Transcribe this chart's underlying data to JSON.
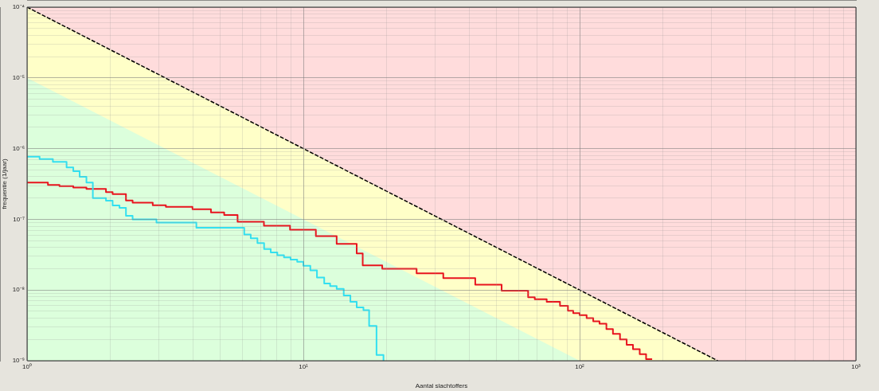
{
  "chart_data": {
    "type": "step",
    "xlabel": "Aantal slachtoffers",
    "ylabel": "frequentie (1/jaar)",
    "log": "xy",
    "grid": true,
    "xlim": [
      1,
      1000
    ],
    "ylim": [
      1e-09,
      0.0001
    ],
    "xticks": [
      {
        "value": 1,
        "label": "10⁰"
      },
      {
        "value": 2,
        "label": null
      },
      {
        "value": 3,
        "label": null
      },
      {
        "value": 4,
        "label": null
      },
      {
        "value": 5,
        "label": null
      },
      {
        "value": 6,
        "label": null
      },
      {
        "value": 7,
        "label": null
      },
      {
        "value": 8,
        "label": null
      },
      {
        "value": 9,
        "label": null
      },
      {
        "value": 10,
        "label": "10¹"
      },
      {
        "value": 20,
        "label": null
      },
      {
        "value": 30,
        "label": null
      },
      {
        "value": 40,
        "label": null
      },
      {
        "value": 50,
        "label": null
      },
      {
        "value": 60,
        "label": null
      },
      {
        "value": 70,
        "label": null
      },
      {
        "value": 80,
        "label": null
      },
      {
        "value": 90,
        "label": null
      },
      {
        "value": 100,
        "label": "10²"
      },
      {
        "value": 200,
        "label": null
      },
      {
        "value": 300,
        "label": null
      },
      {
        "value": 400,
        "label": null
      },
      {
        "value": 500,
        "label": null
      },
      {
        "value": 600,
        "label": null
      },
      {
        "value": 700,
        "label": null
      },
      {
        "value": 800,
        "label": null
      },
      {
        "value": 900,
        "label": null
      },
      {
        "value": 1000,
        "label": "10³"
      }
    ],
    "yticks": [
      {
        "value": 1e-09,
        "label": "10⁻⁹"
      },
      {
        "value": 2e-09,
        "label": null
      },
      {
        "value": 3e-09,
        "label": null
      },
      {
        "value": 4e-09,
        "label": null
      },
      {
        "value": 5e-09,
        "label": null
      },
      {
        "value": 6e-09,
        "label": null
      },
      {
        "value": 7e-09,
        "label": null
      },
      {
        "value": 8e-09,
        "label": null
      },
      {
        "value": 9e-09,
        "label": null
      },
      {
        "value": 1e-08,
        "label": "10⁻⁸"
      },
      {
        "value": 2e-08,
        "label": null
      },
      {
        "value": 3e-08,
        "label": null
      },
      {
        "value": 4e-08,
        "label": null
      },
      {
        "value": 5e-08,
        "label": null
      },
      {
        "value": 6e-08,
        "label": null
      },
      {
        "value": 7e-08,
        "label": null
      },
      {
        "value": 8e-08,
        "label": null
      },
      {
        "value": 9e-08,
        "label": null
      },
      {
        "value": 1e-07,
        "label": "10⁻⁷"
      },
      {
        "value": 2e-07,
        "label": null
      },
      {
        "value": 3e-07,
        "label": null
      },
      {
        "value": 4e-07,
        "label": null
      },
      {
        "value": 5e-07,
        "label": null
      },
      {
        "value": 6e-07,
        "label": null
      },
      {
        "value": 7e-07,
        "label": null
      },
      {
        "value": 8e-07,
        "label": null
      },
      {
        "value": 9e-07,
        "label": null
      },
      {
        "value": 1e-06,
        "label": "10⁻⁶"
      },
      {
        "value": 2e-06,
        "label": null
      },
      {
        "value": 3e-06,
        "label": null
      },
      {
        "value": 4e-06,
        "label": null
      },
      {
        "value": 5e-06,
        "label": null
      },
      {
        "value": 6e-06,
        "label": null
      },
      {
        "value": 7e-06,
        "label": null
      },
      {
        "value": 8e-06,
        "label": null
      },
      {
        "value": 9e-06,
        "label": null
      },
      {
        "value": 1e-05,
        "label": "10⁻⁵"
      },
      {
        "value": 2e-05,
        "label": null
      },
      {
        "value": 3e-05,
        "label": null
      },
      {
        "value": 4e-05,
        "label": null
      },
      {
        "value": 5e-05,
        "label": null
      },
      {
        "value": 6e-05,
        "label": null
      },
      {
        "value": 7e-05,
        "label": null
      },
      {
        "value": 8e-05,
        "label": null
      },
      {
        "value": 9e-05,
        "label": null
      },
      {
        "value": 0.0001,
        "label": "10⁻⁴"
      }
    ],
    "series": [
      {
        "color": "#33e0f0",
        "x": [
          1,
          1.11,
          1.24,
          1.39,
          1.47,
          1.55,
          1.64,
          1.73,
          1.93,
          2.04,
          2.16,
          2.28,
          2.41,
          2.94,
          4.1,
          6.11,
          6.45,
          6.82,
          7.21,
          7.62,
          8.05,
          8.51,
          8.99,
          9.5,
          10,
          10.6,
          11.2,
          11.9,
          12.5,
          13.2,
          14,
          14.8,
          15.6,
          16.5,
          17.3,
          18.4,
          19.5
        ],
        "values": [
          7.7e-07,
          7.1e-07,
          6.5e-07,
          5.4e-07,
          4.8e-07,
          4e-07,
          3.3e-07,
          2e-07,
          1.83e-07,
          1.57e-07,
          1.45e-07,
          1.12e-07,
          1e-07,
          9e-08,
          7.6e-08,
          6.1e-08,
          5.4e-08,
          4.6e-08,
          3.8e-08,
          3.4e-08,
          3.1e-08,
          2.9e-08,
          2.7e-08,
          2.5e-08,
          2.2e-08,
          1.9e-08,
          1.5e-08,
          1.24e-08,
          1.14e-08,
          1.04e-08,
          8.4e-09,
          6.8e-09,
          5.7e-09,
          5.2e-09,
          3.1e-09,
          1.21e-09,
          1e-09
        ]
      },
      {
        "color": "#e8141e",
        "x": [
          1,
          1.19,
          1.31,
          1.47,
          1.64,
          1.93,
          2.04,
          2.28,
          2.41,
          2.85,
          3.18,
          3.97,
          4.63,
          5.17,
          5.78,
          7.2,
          8.95,
          11.1,
          13.2,
          15.6,
          16.4,
          19.3,
          25.7,
          32.1,
          41.9,
          52.2,
          65.1,
          68.8,
          76,
          84.9,
          90.7,
          94.8,
          100,
          106,
          112,
          118,
          125,
          132,
          140,
          148,
          156,
          165,
          174,
          183
        ],
        "values": [
          3.3e-07,
          3.07e-07,
          2.94e-07,
          2.81e-07,
          2.69e-07,
          2.43e-07,
          2.27e-07,
          1.85e-07,
          1.72e-07,
          1.58e-07,
          1.5e-07,
          1.39e-07,
          1.25e-07,
          1.15e-07,
          9.2e-08,
          8.1e-08,
          7.1e-08,
          5.8e-08,
          4.5e-08,
          3.3e-08,
          2.23e-08,
          2e-08,
          1.72e-08,
          1.47e-08,
          1.19e-08,
          9.8e-09,
          7.9e-09,
          7.4e-09,
          6.8e-09,
          6e-09,
          5.1e-09,
          4.7e-09,
          4.4e-09,
          4e-09,
          3.6e-09,
          3.35e-09,
          2.8e-09,
          2.4e-09,
          2e-09,
          1.68e-09,
          1.46e-09,
          1.24e-09,
          1.05e-09,
          1.05e-09
        ]
      },
      {
        "type": "area",
        "color": "#dcffdc",
        "x": [
          1,
          100
        ],
        "values": [
          1e-05,
          1e-09
        ]
      },
      {
        "type": "area",
        "color": "#ffffc8",
        "line_style": "dashed",
        "x": [
          1,
          10,
          100,
          316.2
        ],
        "values": [
          0.0001,
          1e-06,
          1e-08,
          1e-09
        ]
      }
    ]
  }
}
